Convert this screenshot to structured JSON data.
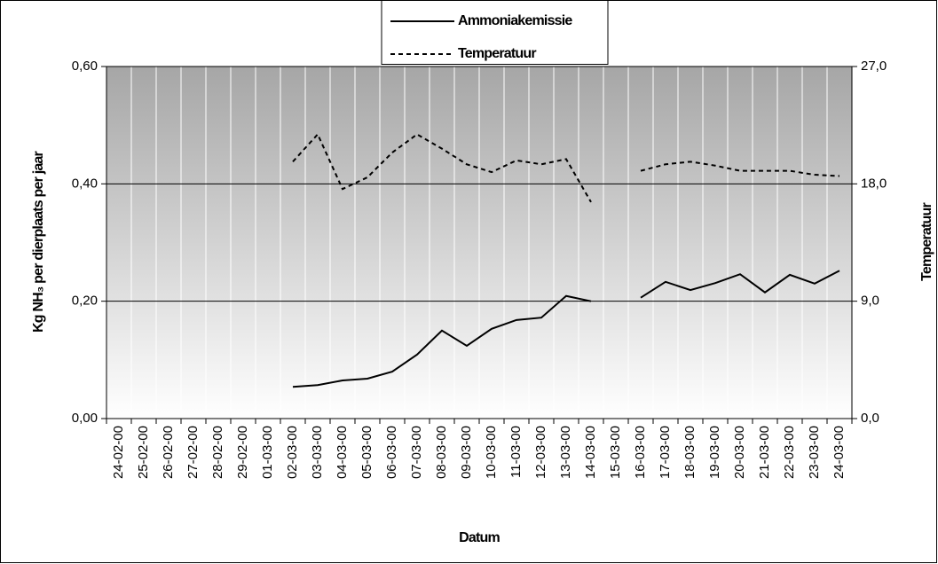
{
  "chart_data": {
    "type": "line",
    "x_label": "Datum",
    "y_label": "Kg NH₃ per dierplaats per jaar",
    "y2_label": "Temperatuur",
    "categories": [
      "24-02-00",
      "25-02-00",
      "26-02-00",
      "27-02-00",
      "28-02-00",
      "29-02-00",
      "01-03-00",
      "02-03-00",
      "03-03-00",
      "04-03-00",
      "05-03-00",
      "06-03-00",
      "07-03-00",
      "08-03-00",
      "09-03-00",
      "10-03-00",
      "11-03-00",
      "12-03-00",
      "13-03-00",
      "14-03-00",
      "15-03-00",
      "16-03-00",
      "17-03-00",
      "18-03-00",
      "19-03-00",
      "20-03-00",
      "21-03-00",
      "22-03-00",
      "23-03-00",
      "24-03-00"
    ],
    "series": [
      {
        "name": "Ammoniakemissie",
        "color": "#000000",
        "line_style": "solid",
        "values": [
          null,
          null,
          null,
          null,
          null,
          null,
          null,
          0.054,
          0.057,
          0.065,
          0.068,
          0.08,
          0.109,
          0.15,
          0.124,
          0.153,
          0.168,
          0.172,
          0.209,
          0.2,
          null,
          0.206,
          0.233,
          0.219,
          0.231,
          0.246,
          0.215,
          0.245,
          0.23,
          0.252
        ]
      },
      {
        "name": "Temperatuur",
        "color": "#000000",
        "line_style": "dashed",
        "axis": "y2",
        "values": [
          null,
          null,
          null,
          null,
          null,
          null,
          null,
          19.7,
          21.8,
          17.6,
          18.5,
          20.4,
          21.8,
          20.7,
          19.5,
          18.9,
          19.8,
          19.5,
          19.9,
          16.6,
          null,
          19.0,
          19.5,
          19.7,
          19.4,
          19.0,
          19.0,
          19.0,
          18.7,
          18.6
        ]
      }
    ],
    "ylim": [
      0,
      0.6
    ],
    "yticks": [
      {
        "value": 0,
        "label": "0,00"
      },
      {
        "value": 0.2,
        "label": "0,20"
      },
      {
        "value": 0.4,
        "label": "0,40"
      },
      {
        "value": 0.6,
        "label": "0,60"
      }
    ],
    "y2lim": [
      0,
      27
    ],
    "y2ticks": [
      {
        "value": 0,
        "label": "0,0"
      },
      {
        "value": 9,
        "label": "9,0"
      },
      {
        "value": 18,
        "label": "18,0"
      },
      {
        "value": 27,
        "label": "27,0"
      }
    ],
    "grid": true
  }
}
